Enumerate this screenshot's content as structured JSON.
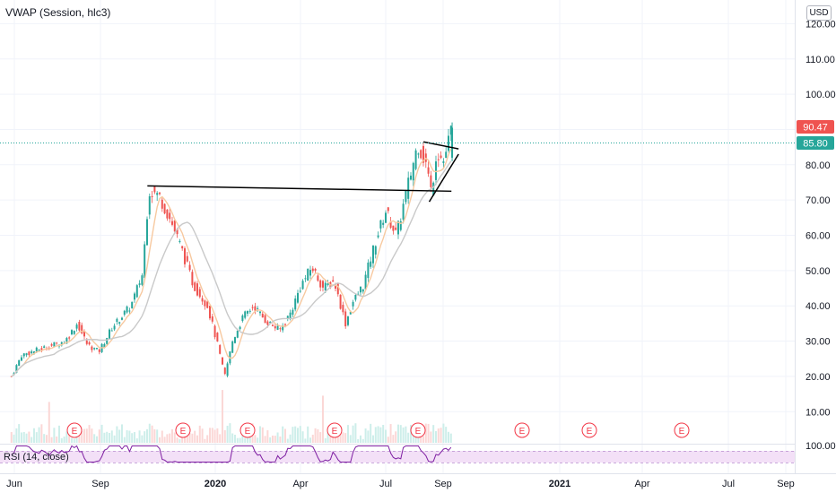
{
  "legend": {
    "indicator": "VWAP (Session, hlc3)"
  },
  "rsi_legend": {
    "label": "RSI (14, close)"
  },
  "currency": "USD",
  "colors": {
    "up": "#26a69a",
    "down": "#ef5350",
    "ma_fast": "#f7c9a0",
    "ma_slow": "#c9c9c9",
    "rsi_line": "#7e1fa2",
    "rsi_band": "#f3e0f7",
    "trendline": "#000000",
    "earnings": "#f23645"
  },
  "badges": {
    "last_price": "90.47",
    "prev_close": "85.80"
  },
  "earnings_label": "E",
  "earnings_x": [
    83,
    204,
    276,
    373,
    466,
    582,
    657,
    760
  ],
  "rsi_axis_label": "100.00",
  "chart_data": {
    "type": "candlestick",
    "y_axis": {
      "labels": [
        "120.00",
        "110.00",
        "100.00",
        "90.00",
        "80.00",
        "70.00",
        "60.00",
        "50.00",
        "40.00",
        "30.00",
        "20.00",
        "10.00"
      ],
      "ylim": [
        0,
        122
      ]
    },
    "x_axis": {
      "labels": [
        "Jun",
        "Sep",
        "2020",
        "Apr",
        "Jul",
        "Sep",
        "2021",
        "Apr",
        "Jul",
        "Sep"
      ],
      "bold": [
        "2020",
        "2021"
      ]
    },
    "price_path": [
      [
        "2019-06-01",
        20
      ],
      [
        "2019-06-15",
        26
      ],
      [
        "2019-07-15",
        28
      ],
      [
        "2019-08-15",
        30
      ],
      [
        "2019-09-01",
        35
      ],
      [
        "2019-09-15",
        29
      ],
      [
        "2019-10-01",
        27
      ],
      [
        "2019-10-20",
        34
      ],
      [
        "2019-11-15",
        40
      ],
      [
        "2019-12-01",
        49
      ],
      [
        "2019-12-10",
        73
      ],
      [
        "2019-12-25",
        71
      ],
      [
        "2020-01-10",
        64
      ],
      [
        "2020-01-25",
        56
      ],
      [
        "2020-02-10",
        46
      ],
      [
        "2020-03-01",
        40
      ],
      [
        "2020-03-15",
        29
      ],
      [
        "2020-03-25",
        20
      ],
      [
        "2020-04-05",
        30
      ],
      [
        "2020-04-20",
        37
      ],
      [
        "2020-05-05",
        40
      ],
      [
        "2020-05-20",
        36
      ],
      [
        "2020-06-10",
        33
      ],
      [
        "2020-06-25",
        38
      ],
      [
        "2020-07-10",
        46
      ],
      [
        "2020-07-25",
        51
      ],
      [
        "2020-08-10",
        45
      ],
      [
        "2020-08-25",
        47
      ],
      [
        "2020-09-10",
        35
      ],
      [
        "2020-09-20",
        41
      ],
      [
        "2020-10-05",
        46
      ],
      [
        "2020-10-20",
        57
      ],
      [
        "2020-11-05",
        67
      ],
      [
        "2020-11-20",
        60
      ],
      [
        "2020-12-05",
        73
      ],
      [
        "2020-12-20",
        86
      ],
      [
        "2021-01-01",
        80
      ],
      [
        "2021-01-08",
        72
      ],
      [
        "2021-01-15",
        84
      ],
      [
        "2021-01-25",
        81
      ],
      [
        "2021-02-05",
        90
      ]
    ],
    "trendlines": [
      {
        "from": [
          "2019-12-08",
          74
        ],
        "to": [
          "2021-02-05",
          72.5
        ]
      },
      {
        "from": [
          "2020-12-28",
          86.5
        ],
        "to": [
          "2021-02-15",
          84.5
        ]
      },
      {
        "from": [
          "2021-01-05",
          69.5
        ],
        "to": [
          "2021-02-15",
          83
        ]
      }
    ],
    "rsi": {
      "ylim": [
        0,
        100
      ],
      "band": [
        30,
        70
      ]
    },
    "last_price": 90.47,
    "prev_close": 85.8
  }
}
